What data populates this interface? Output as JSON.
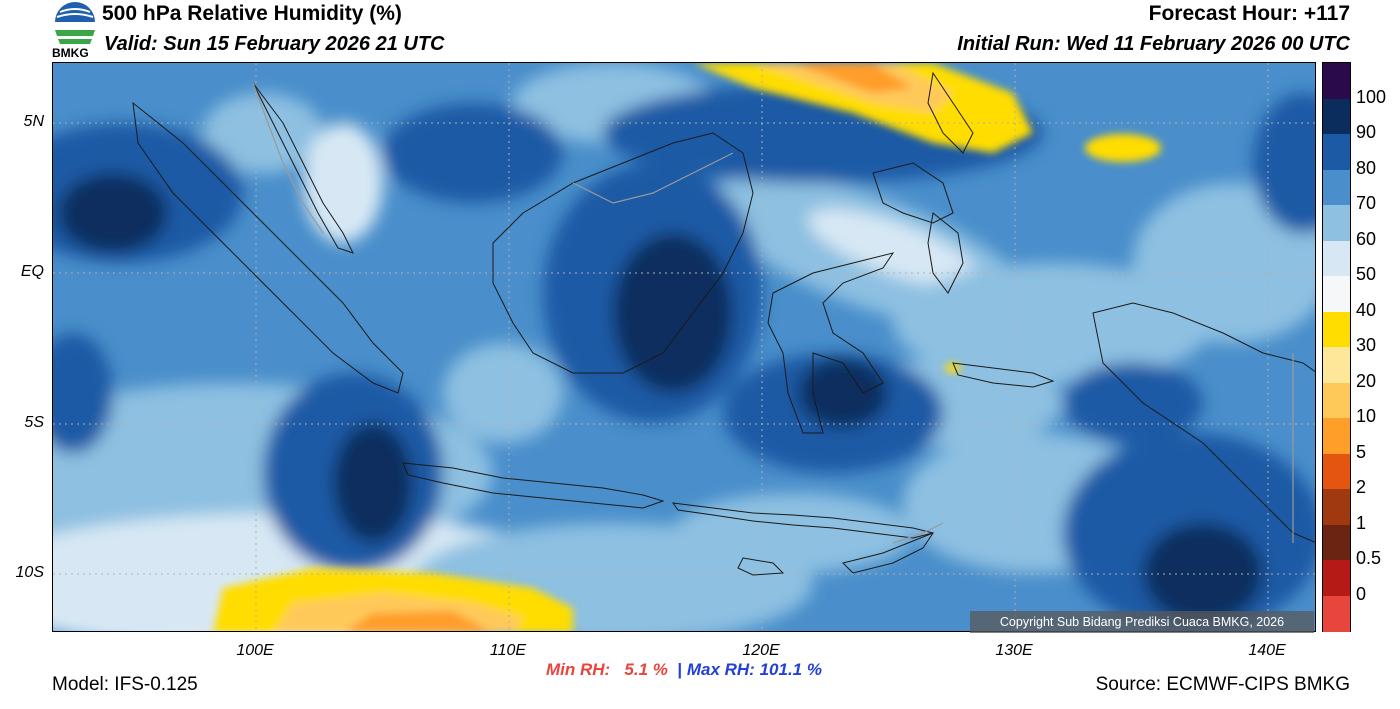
{
  "header": {
    "title": "500 hPa Relative Humidity (%)",
    "valid": "Valid: Sun 15 February 2026 21 UTC",
    "forecast_hour": "Forecast Hour: +117",
    "initial_run": "Initial Run: Wed 11 February 2026 00 UTC"
  },
  "logo": {
    "text": "BMKG",
    "colors": {
      "blue": "#1f5fae",
      "green": "#3aa648"
    }
  },
  "map": {
    "lat_labels": [
      "5N",
      "EQ",
      "5S",
      "10S"
    ],
    "lon_labels": [
      "100E",
      "110E",
      "120E",
      "130E",
      "140E"
    ],
    "copyright": "Copyright Sub Bidang Prediksi Cuaca BMKG, 2026",
    "palette": {
      "rh_90_100": "#0b2d5e",
      "rh_80_90": "#1d5aa5",
      "rh_70_80": "#4a8fcb",
      "rh_60_70": "#8dc0e1",
      "rh_50_60": "#d7e8f4",
      "rh_40_50": "#f5f7f8",
      "rh_30_40": "#ffdd00",
      "rh_20_30": "#ffe79a",
      "rh_10_20": "#ffc95a",
      "rh_5_10": "#ff9e29",
      "coast": "#1a1a1a",
      "border": "#9a9a9a"
    }
  },
  "colorbar": {
    "labels": [
      "100",
      "90",
      "80",
      "70",
      "60",
      "50",
      "40",
      "30",
      "20",
      "10",
      "5",
      "2",
      "1",
      "0.5",
      "0"
    ],
    "colors": [
      "#2a0a4a",
      "#0b2d5e",
      "#1d5aa5",
      "#4a8fcb",
      "#8dc0e1",
      "#d7e8f4",
      "#f5f7f8",
      "#ffdd00",
      "#ffe79a",
      "#ffc95a",
      "#ff9e29",
      "#e4550f",
      "#a13910",
      "#6b2411",
      "#b61a17",
      "#e8453c"
    ]
  },
  "stats": {
    "min_label": "Min RH:",
    "min_value": "5.1 %",
    "separator": "|",
    "max_label": "Max RH:",
    "max_value": "101.1 %"
  },
  "footer": {
    "model": "Model: IFS-0.125",
    "source": "Source: ECMWF-CIPS BMKG"
  }
}
